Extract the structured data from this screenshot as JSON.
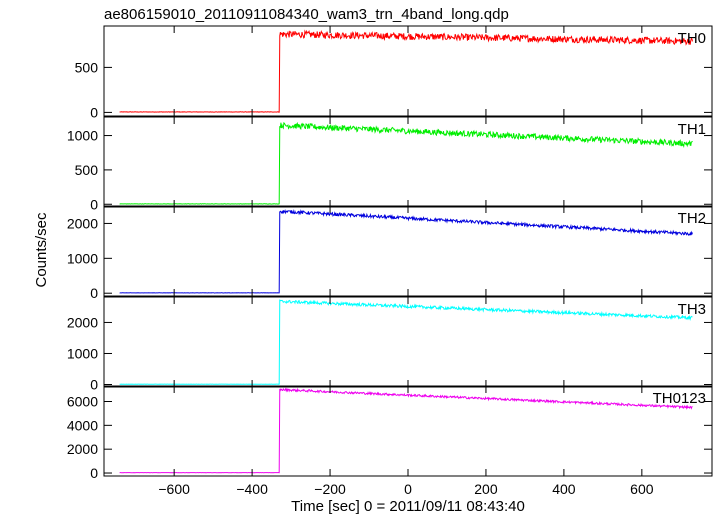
{
  "chart_data": {
    "type": "line",
    "title": "ae806159010_20110911084340_wam3_trn_4band_long.qdp",
    "xlabel": "Time [sec] 0 = 2011/09/11 08:43:40",
    "ylabel": "Counts/sec",
    "xlim": [
      -780,
      780
    ],
    "x_ticks": [
      -600,
      -400,
      -200,
      0,
      200,
      400,
      600
    ],
    "x_tick_labels": [
      "−600",
      "−400",
      "−200",
      "0",
      "200",
      "400",
      "600"
    ],
    "grid": false,
    "trigger_time": -330,
    "data_range": [
      -740,
      730
    ],
    "panels": [
      {
        "name": "TH0",
        "color": "#ff0000",
        "ylim": [
          -40,
          960
        ],
        "y_ticks": [
          0,
          500
        ],
        "y_tick_labels": [
          "0",
          "500"
        ],
        "pre_level": 5,
        "peak_level": 870,
        "end_level": 790,
        "noise": 38
      },
      {
        "name": "TH1",
        "color": "#00ee00",
        "ylim": [
          -40,
          1270
        ],
        "y_ticks": [
          0,
          500,
          1000
        ],
        "y_tick_labels": [
          "0",
          "500",
          "1000"
        ],
        "pre_level": 5,
        "peak_level": 1150,
        "end_level": 880,
        "noise": 42
      },
      {
        "name": "TH2",
        "color": "#0000dd",
        "ylim": [
          -80,
          2500
        ],
        "y_ticks": [
          0,
          1000,
          2000
        ],
        "y_tick_labels": [
          "0",
          "1000",
          "2000"
        ],
        "pre_level": 10,
        "peak_level": 2350,
        "end_level": 1700,
        "noise": 45
      },
      {
        "name": "TH3",
        "color": "#00ffff",
        "ylim": [
          -80,
          2820
        ],
        "y_ticks": [
          0,
          1000,
          2000
        ],
        "y_tick_labels": [
          "0",
          "1000",
          "2000"
        ],
        "pre_level": 10,
        "peak_level": 2680,
        "end_level": 2150,
        "noise": 48
      },
      {
        "name": "TH0123",
        "color": "#ee00ee",
        "ylim": [
          -250,
          7300
        ],
        "y_ticks": [
          0,
          2000,
          4000,
          6000
        ],
        "y_tick_labels": [
          "0",
          "2000",
          "4000",
          "6000"
        ],
        "pre_level": 30,
        "peak_level": 7000,
        "end_level": 5500,
        "noise": 90
      }
    ]
  }
}
